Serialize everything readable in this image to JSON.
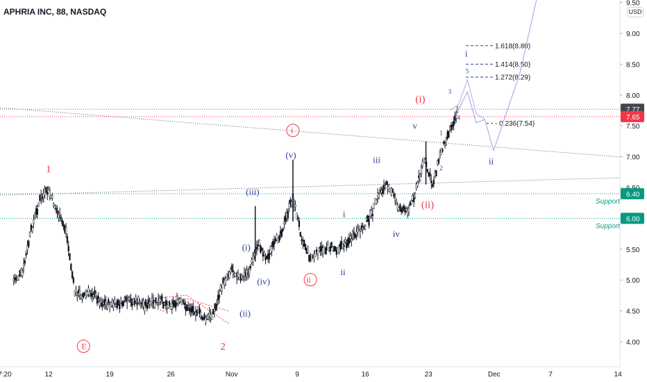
{
  "header": {
    "title": "APHRIA INC, 88, NASDAQ",
    "currency": "USD"
  },
  "chart_data": {
    "type": "candlestick",
    "symbol": "APHRIA INC, 88, NASDAQ",
    "y_ticks": [
      "9.50",
      "9.00",
      "8.50",
      "8.00",
      "7.50",
      "7.00",
      "6.50",
      "6.00",
      "5.50",
      "5.00",
      "4.50",
      "4.00"
    ],
    "x_ticks": [
      "7:20",
      "12",
      "19",
      "26",
      "Nov",
      "9",
      "16",
      "23",
      "Dec",
      "7",
      "14"
    ],
    "price_tags": [
      {
        "label": "7.77",
        "value": 7.77,
        "color": "#434651"
      },
      {
        "label": "7.65",
        "value": 7.65,
        "color": "#f23645"
      },
      {
        "label": "6.40",
        "value": 6.4,
        "color": "#089981"
      },
      {
        "label": "6.00",
        "value": 6.0,
        "color": "#089981"
      }
    ],
    "support_labels": [
      {
        "label": "Support",
        "value": 6.4
      },
      {
        "label": "Support",
        "value": 6.0
      }
    ],
    "fib_levels": [
      {
        "label": "1.618(8.80)",
        "value": 8.8
      },
      {
        "label": "1.414(8.50)",
        "value": 8.5
      },
      {
        "label": "1.272(8.29)",
        "value": 8.29
      },
      {
        "label": "0.236(7.54)",
        "value": 7.54
      }
    ],
    "wave_labels": [
      {
        "text": "1",
        "color": "#f23645",
        "x": "Oct 12",
        "y": 6.75
      },
      {
        "text": "2",
        "color": "#f23645",
        "x": "Nov 1",
        "y": 3.87
      },
      {
        "text": "E",
        "color": "#f23645",
        "circled": true,
        "x": "Oct 16",
        "y": 3.87
      },
      {
        "text": "i",
        "color": "#f23645",
        "circled": true,
        "x": "Nov 9",
        "y": 7.37
      },
      {
        "text": "ii",
        "color": "#f23645",
        "circled": true,
        "x": "Nov 11",
        "y": 4.95
      },
      {
        "text": "(i)",
        "color": "#f23645",
        "x": "Nov 24",
        "y": 7.88
      },
      {
        "text": "(ii)",
        "color": "#f23645",
        "x": "Nov 25",
        "y": 6.17
      },
      {
        "text": "(i)",
        "color": "#2a3f8f",
        "x": "Nov 4",
        "y": 5.48
      },
      {
        "text": "(ii)",
        "color": "#2a3f8f",
        "x": "Nov 4",
        "y": 4.41
      },
      {
        "text": "(iii)",
        "color": "#2a3f8f",
        "x": "Nov 5",
        "y": 6.38
      },
      {
        "text": "(iv)",
        "color": "#2a3f8f",
        "x": "Nov 6",
        "y": 4.93
      },
      {
        "text": "(v)",
        "color": "#2a3f8f",
        "x": "Nov 9",
        "y": 6.98
      },
      {
        "text": "i",
        "color": "#2a3f8f",
        "x": "Nov 15",
        "y": 6.02
      },
      {
        "text": "ii",
        "color": "#2a3f8f",
        "x": "Nov 15",
        "y": 5.08
      },
      {
        "text": "iii",
        "color": "#2a3f8f",
        "x": "Nov 19",
        "y": 6.9
      },
      {
        "text": "iv",
        "color": "#2a3f8f",
        "x": "Nov 21",
        "y": 5.7
      },
      {
        "text": "v",
        "color": "#2a3f8f",
        "x": "Nov 23",
        "y": 7.45
      },
      {
        "text": "1",
        "color": "#2a3f8f",
        "x": "Nov 26",
        "y": 7.35
      },
      {
        "text": "2",
        "color": "#2a3f8f",
        "x": "Nov 26",
        "y": 6.78
      },
      {
        "text": "3",
        "color": "#2a3f8f",
        "x": "Nov 27",
        "y": 8.02
      },
      {
        "text": "4",
        "color": "#2a3f8f",
        "x": "Nov 28",
        "y": 7.6
      },
      {
        "text": "5",
        "color": "#2a3f8f",
        "x": "Nov 29",
        "y": 8.35
      },
      {
        "text": "i",
        "color": "#2a3f8f",
        "x": "Nov 29",
        "y": 8.62
      },
      {
        "text": "ii",
        "color": "#2a3f8f",
        "x": "Dec 2",
        "y": 6.88
      }
    ],
    "price_path": [
      [
        "Oct 8",
        5.0
      ],
      [
        "Oct 9",
        5.1
      ],
      [
        "Oct 10",
        5.8
      ],
      [
        "Oct 11",
        6.3
      ],
      [
        "Oct 12",
        6.45
      ],
      [
        "Oct 13",
        6.1
      ],
      [
        "Oct 14",
        5.8
      ],
      [
        "Oct 15",
        4.8
      ],
      [
        "Oct 16",
        4.75
      ],
      [
        "Oct 17",
        4.8
      ],
      [
        "Oct 18",
        4.65
      ],
      [
        "Oct 19",
        4.6
      ],
      [
        "Oct 20",
        4.6
      ],
      [
        "Oct 21",
        4.65
      ],
      [
        "Oct 22",
        4.65
      ],
      [
        "Oct 23",
        4.6
      ],
      [
        "Oct 24",
        4.62
      ],
      [
        "Oct 25",
        4.65
      ],
      [
        "Oct 26",
        4.6
      ],
      [
        "Oct 27",
        4.65
      ],
      [
        "Oct 28",
        4.55
      ],
      [
        "Oct 29",
        4.5
      ],
      [
        "Oct 30",
        4.35
      ],
      [
        "Oct 31",
        4.5
      ],
      [
        "Nov 1",
        4.95
      ],
      [
        "Nov 2",
        5.2
      ],
      [
        "Nov 3",
        5.0
      ],
      [
        "Nov 4",
        5.15
      ],
      [
        "Nov 5",
        5.6
      ],
      [
        "Nov 6",
        5.35
      ],
      [
        "Nov 7",
        5.6
      ],
      [
        "Nov 8",
        5.9
      ],
      [
        "Nov 9",
        6.35
      ],
      [
        "Nov 10",
        5.7
      ],
      [
        "Nov 11",
        5.35
      ],
      [
        "Nov 12",
        5.45
      ],
      [
        "Nov 13",
        5.55
      ],
      [
        "Nov 14",
        5.5
      ],
      [
        "Nov 15",
        5.6
      ],
      [
        "Nov 16",
        5.7
      ],
      [
        "Nov 17",
        5.85
      ],
      [
        "Nov 18",
        6.05
      ],
      [
        "Nov 19",
        6.45
      ],
      [
        "Nov 20",
        6.55
      ],
      [
        "Nov 21",
        6.2
      ],
      [
        "Nov 22",
        6.1
      ],
      [
        "Nov 23",
        6.4
      ],
      [
        "Nov 24",
        6.95
      ],
      [
        "Nov 25",
        6.55
      ],
      [
        "Nov 26",
        7.1
      ],
      [
        "Nov 27",
        7.45
      ],
      [
        "Nov 28",
        7.77
      ]
    ],
    "projection": [
      [
        "Nov 28",
        7.77
      ],
      [
        "Nov 29",
        8.05
      ],
      [
        "Nov 30",
        7.55
      ],
      [
        "Dec 1",
        7.6
      ],
      [
        "Dec 2",
        7.1
      ],
      [
        "Dec 5",
        8.35
      ],
      [
        "Dec 7",
        9.6
      ]
    ],
    "projection_inner": [
      [
        "Nov 27",
        7.75
      ],
      [
        "Nov 28",
        7.85
      ],
      [
        "Nov 29",
        8.25
      ],
      [
        "Nov 30",
        7.7
      ],
      [
        "Dec 1",
        7.6
      ]
    ]
  }
}
